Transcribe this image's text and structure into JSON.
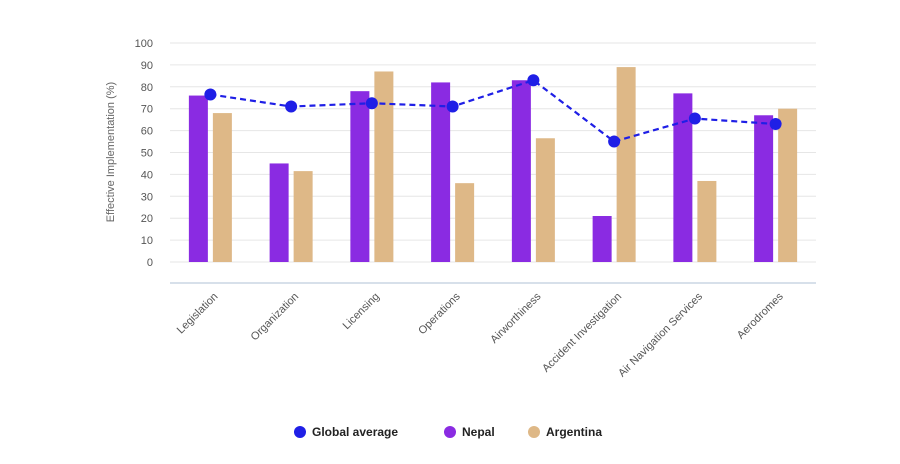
{
  "chart_data": {
    "type": "bar",
    "title": "",
    "xlabel": "",
    "ylabel": "Effective Implementation (%)",
    "ylim": [
      0,
      100
    ],
    "yticks": [
      0,
      10,
      20,
      30,
      40,
      50,
      60,
      70,
      80,
      90,
      100
    ],
    "grid": true,
    "legend_position": "bottom",
    "categories": [
      "Legislation",
      "Organization",
      "Licensing",
      "Operations",
      "Airworthiness",
      "Accident Investigation",
      "Air Navigation Services",
      "Aerodromes"
    ],
    "series": [
      {
        "name": "Global average",
        "kind": "line",
        "style": "dashed",
        "marker": "circle",
        "color": "#1f1fe6",
        "values": [
          76.5,
          71,
          72.5,
          71,
          83,
          55,
          65.5,
          63
        ]
      },
      {
        "name": "Nepal",
        "kind": "bar",
        "color": "#8a2be2",
        "values": [
          76,
          45,
          78,
          82,
          83,
          21,
          77,
          67
        ]
      },
      {
        "name": "Argentina",
        "kind": "bar",
        "color": "#deb887",
        "values": [
          68,
          41.5,
          87,
          36,
          56.5,
          89,
          37,
          70
        ]
      }
    ]
  }
}
